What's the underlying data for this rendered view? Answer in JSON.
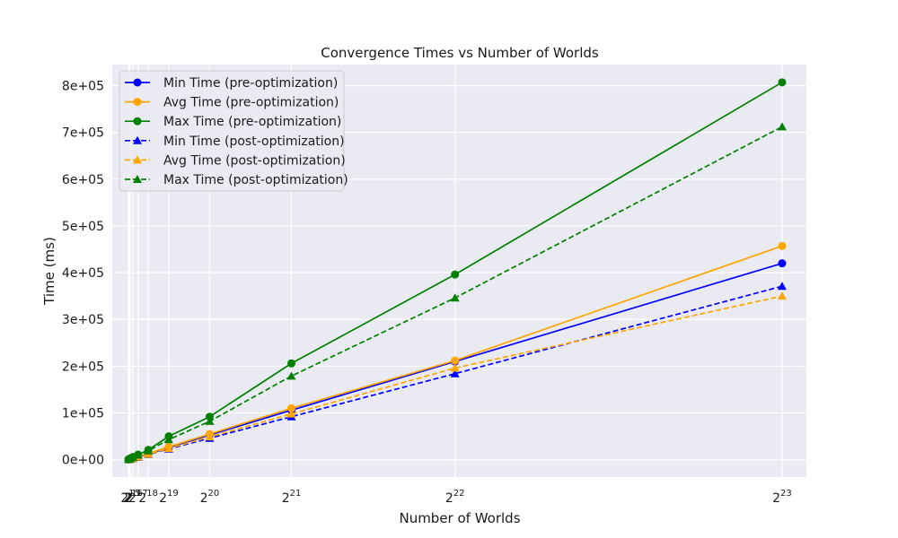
{
  "chart_data": {
    "type": "line",
    "title": "Convergence Times vs Number of Worlds",
    "xlabel": "Number of Worlds",
    "ylabel": "Time (ms)",
    "x_scale": "linear",
    "x": [
      8192,
      16384,
      32768,
      65536,
      131072,
      262144,
      524288,
      1048576,
      2097152,
      4194304,
      8388608
    ],
    "xticks": [
      {
        "value": 8192,
        "base": "2",
        "exp": ""
      },
      {
        "value": 16384,
        "base": "2",
        "exp": ""
      },
      {
        "value": 32768,
        "base": "2",
        "exp": "15"
      },
      {
        "value": 65536,
        "base": "2",
        "exp": "16"
      },
      {
        "value": 131072,
        "base": "2",
        "exp": "17"
      },
      {
        "value": 262144,
        "base": "2",
        "exp": "18"
      },
      {
        "value": 524288,
        "base": "2",
        "exp": "19"
      },
      {
        "value": 1048576,
        "base": "2",
        "exp": "20"
      },
      {
        "value": 2097152,
        "base": "2",
        "exp": "21"
      },
      {
        "value": 4194304,
        "base": "2",
        "exp": "22"
      },
      {
        "value": 8388608,
        "base": "2",
        "exp": "23"
      }
    ],
    "xlim": [
      -200000,
      8700000
    ],
    "ylim": [
      -37000,
      845000
    ],
    "yticks": [
      0,
      100000,
      200000,
      300000,
      400000,
      500000,
      600000,
      700000,
      800000
    ],
    "ytick_labels": [
      "0e+00",
      "1e+05",
      "2e+05",
      "3e+05",
      "4e+05",
      "5e+05",
      "6e+05",
      "7e+05",
      "8e+05"
    ],
    "grid": true,
    "legend_position": "top-left",
    "series": [
      {
        "name": "Min Time (pre-optimization)",
        "color": "#0000ff",
        "linestyle": "solid",
        "marker": "circle",
        "values": [
          400,
          800,
          1500,
          3000,
          6000,
          12500,
          26000,
          53000,
          106000,
          210000,
          420000
        ]
      },
      {
        "name": "Avg Time (pre-optimization)",
        "color": "#ffa500",
        "linestyle": "solid",
        "marker": "circle",
        "values": [
          450,
          900,
          1700,
          3400,
          6800,
          13500,
          27500,
          55000,
          110000,
          212000,
          457000
        ]
      },
      {
        "name": "Max Time (pre-optimization)",
        "color": "#008000",
        "linestyle": "solid",
        "marker": "circle",
        "values": [
          700,
          1500,
          3000,
          6000,
          11000,
          21000,
          50000,
          92000,
          206000,
          396000,
          807000
        ]
      },
      {
        "name": "Min Time (post-optimization)",
        "color": "#0000ff",
        "linestyle": "dashed",
        "marker": "triangle",
        "values": [
          350,
          700,
          1300,
          2600,
          5500,
          11500,
          23000,
          46000,
          92000,
          184000,
          371000
        ]
      },
      {
        "name": "Avg Time (post-optimization)",
        "color": "#ffa500",
        "linestyle": "dashed",
        "marker": "triangle",
        "values": [
          380,
          750,
          1400,
          2800,
          6000,
          12000,
          24000,
          49000,
          98000,
          196000,
          350000
        ]
      },
      {
        "name": "Max Time (post-optimization)",
        "color": "#008000",
        "linestyle": "dashed",
        "marker": "triangle",
        "values": [
          600,
          1300,
          2600,
          5200,
          10000,
          19000,
          43000,
          82000,
          179000,
          346000,
          712000
        ]
      }
    ]
  }
}
